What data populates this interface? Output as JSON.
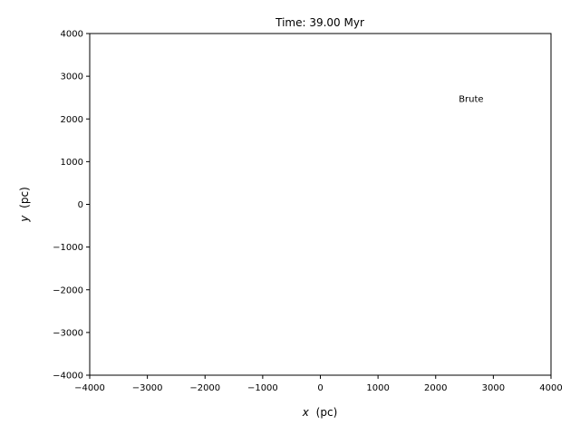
{
  "chart_data": {
    "type": "scatter",
    "title": "Time: 39.00 Myr",
    "xlabel": "(pc)",
    "xlabel_var": "x",
    "ylabel": "(pc)",
    "ylabel_var": "y",
    "xlim": [
      -4000,
      4000
    ],
    "ylim": [
      -4000,
      4000
    ],
    "xticks": [
      -4000,
      -3000,
      -2000,
      -1000,
      0,
      1000,
      2000,
      3000,
      4000
    ],
    "yticks": [
      -4000,
      -3000,
      -2000,
      -1000,
      0,
      1000,
      2000,
      3000,
      4000
    ],
    "grid": false,
    "series": [],
    "annotations": [
      {
        "text": "Brute",
        "x": 2400,
        "y": 2400
      }
    ]
  }
}
